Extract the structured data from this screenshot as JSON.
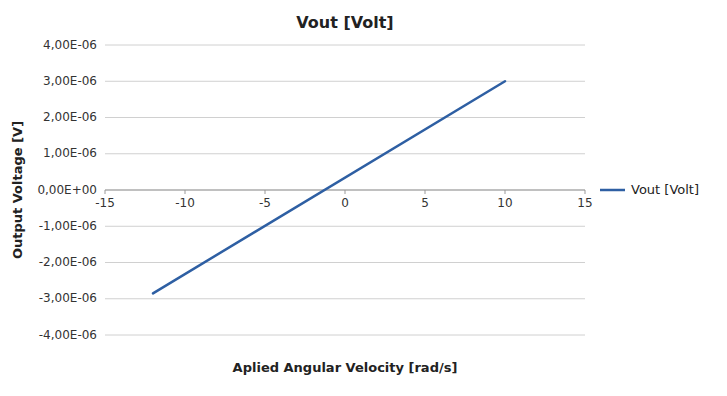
{
  "chart_data": {
    "type": "line",
    "title": "Vout [Volt]",
    "x_label": "Aplied Angular Velocity [rad/s]",
    "y_label": "Output Voltage [V]",
    "x": [
      -12,
      10
    ],
    "series": [
      {
        "name": "Vout [Volt]",
        "color": "#2e5fa3",
        "values": [
          -2.85e-06,
          3e-06
        ]
      }
    ],
    "xlim": [
      -15,
      15
    ],
    "ylim": [
      -4e-06,
      4e-06
    ],
    "xticks": [
      -15,
      -10,
      -5,
      0,
      5,
      10,
      15
    ],
    "yticks": [
      {
        "value": -4e-06,
        "label": "-4,00E-06"
      },
      {
        "value": -3e-06,
        "label": "-3,00E-06"
      },
      {
        "value": -2e-06,
        "label": "-2,00E-06"
      },
      {
        "value": -1e-06,
        "label": "-1,00E-06"
      },
      {
        "value": 0,
        "label": "0,00E+00"
      },
      {
        "value": 1e-06,
        "label": "1,00E-06"
      },
      {
        "value": 2e-06,
        "label": "2,00E-06"
      },
      {
        "value": 3e-06,
        "label": "3,00E-06"
      },
      {
        "value": 4e-06,
        "label": "4,00E-06"
      }
    ],
    "grid": "y",
    "legend": "right"
  }
}
